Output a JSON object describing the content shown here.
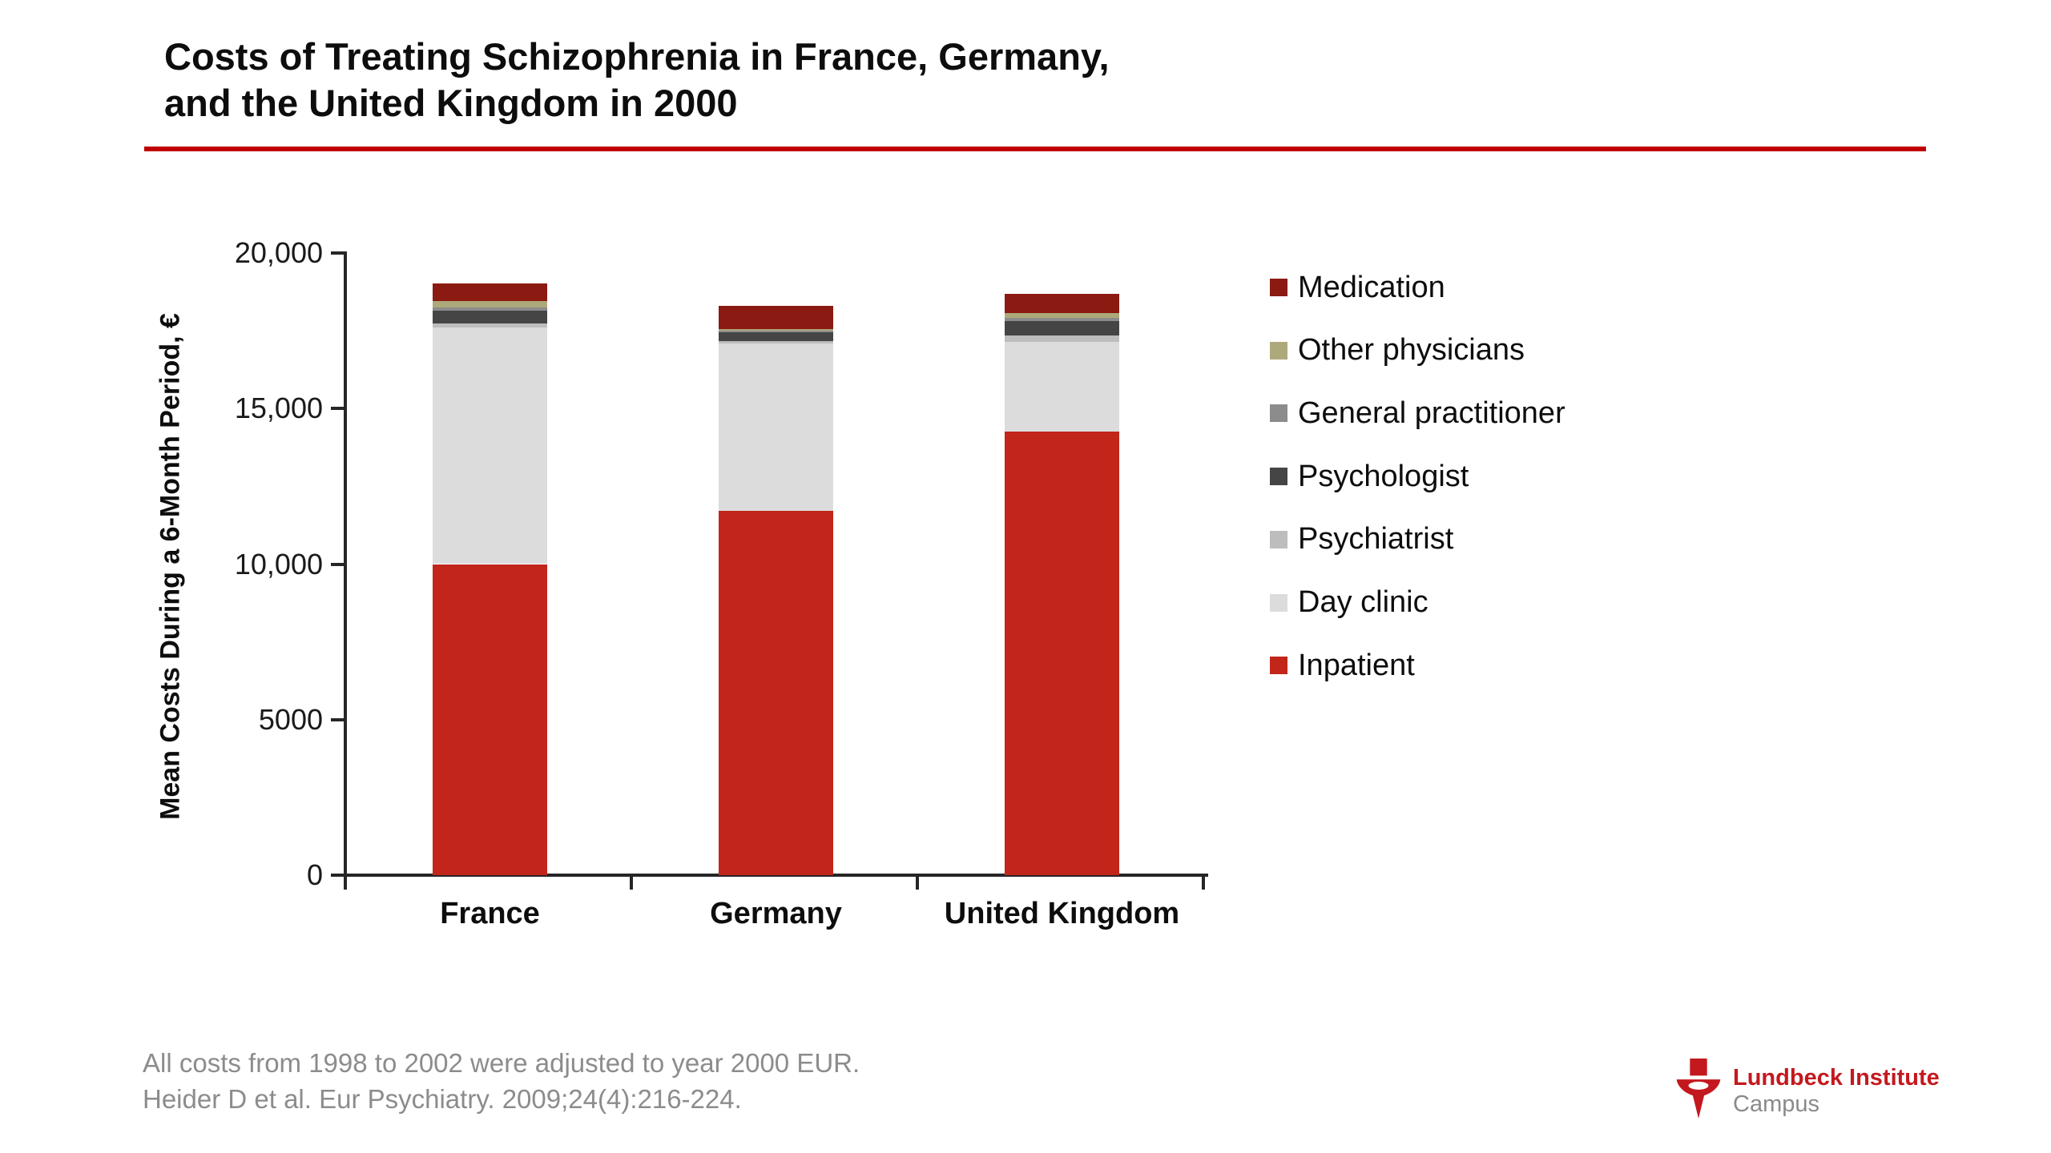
{
  "slide": {
    "title_line1": "Costs of Treating Schizophrenia in France, Germany,",
    "title_line2": "and the United Kingdom in 2000",
    "accent_color": "#c00000",
    "footnote_line1": "All costs from 1998 to 2002 were adjusted to year 2000 EUR.",
    "footnote_line2": "Heider D et al. Eur Psychiatry. 2009;24(4):216-224."
  },
  "logo": {
    "brand": "Lundbeck Institute",
    "sub_brand": "Campus",
    "mark": "lundbeck-star-icon",
    "red": "#c3191e",
    "gray": "#8a8a8a"
  },
  "chart_data": {
    "type": "bar",
    "stacked": true,
    "title": "Costs of Treating Schizophrenia in France, Germany, and the United Kingdom in 2000",
    "xlabel": "",
    "ylabel": "Mean Costs During a 6-Month Period, €",
    "ylim": [
      0,
      20000
    ],
    "grid": false,
    "legend_position": "right",
    "categories": [
      "France",
      "Germany",
      "United Kingdom"
    ],
    "yticks": [
      {
        "value": 0,
        "label": "0"
      },
      {
        "value": 5000,
        "label": "5000"
      },
      {
        "value": 10000,
        "label": "10,000"
      },
      {
        "value": 15000,
        "label": "15,000"
      },
      {
        "value": 20000,
        "label": "20,000"
      }
    ],
    "series": [
      {
        "name": "Inpatient",
        "color": "#c2251a",
        "values": [
          10000,
          11700,
          14250
        ]
      },
      {
        "name": "Day clinic",
        "color": "#dcdcdc",
        "values": [
          7600,
          5400,
          2900
        ]
      },
      {
        "name": "Psychiatrist",
        "color": "#bdbdbd",
        "values": [
          130,
          60,
          210
        ]
      },
      {
        "name": "Psychologist",
        "color": "#454545",
        "values": [
          410,
          280,
          440
        ]
      },
      {
        "name": "General practitioner",
        "color": "#8c8c8c",
        "values": [
          100,
          60,
          110
        ]
      },
      {
        "name": "Other physicians",
        "color": "#aea97b",
        "values": [
          210,
          60,
          150
        ]
      },
      {
        "name": "Medication",
        "color": "#8b1a12",
        "values": [
          570,
          750,
          640
        ]
      }
    ],
    "legend_order_top_to_bottom": [
      "Medication",
      "Other physicians",
      "General practitioner",
      "Psychologist",
      "Psychiatrist",
      "Day clinic",
      "Inpatient"
    ],
    "totals": [
      19020,
      18310,
      18700
    ]
  }
}
